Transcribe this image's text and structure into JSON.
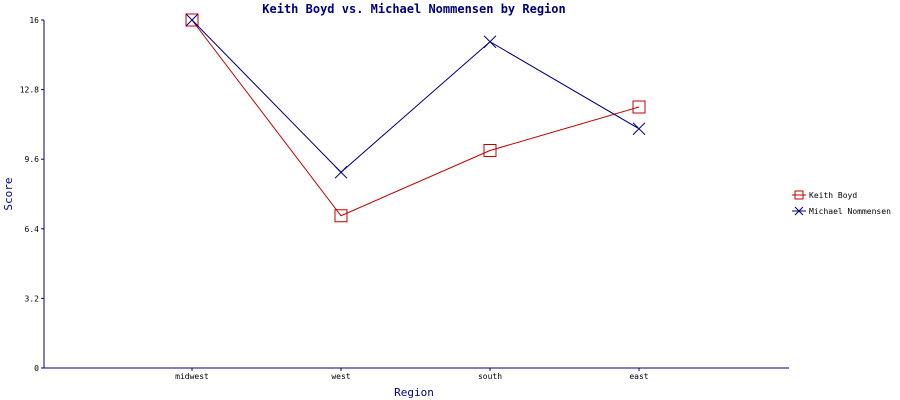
{
  "chart_data": {
    "type": "line",
    "title": "Keith Boyd vs. Michael Nommensen by Region",
    "xlabel": "Region",
    "ylabel": "Score",
    "categories": [
      "midwest",
      "west",
      "south",
      "east"
    ],
    "ylim": [
      0,
      16
    ],
    "yticks": [
      "0",
      "3.2",
      "6.4",
      "9.6",
      "12.8",
      "16"
    ],
    "grid": false,
    "legend_position": "right",
    "series": [
      {
        "name": "Keith Boyd",
        "color": "#c00000",
        "marker": "square",
        "values": [
          16,
          7.0,
          10.0,
          12.0
        ]
      },
      {
        "name": "Michael Nommensen",
        "color": "#000080",
        "marker": "x",
        "values": [
          16,
          9.0,
          15.0,
          11.0
        ]
      }
    ]
  }
}
